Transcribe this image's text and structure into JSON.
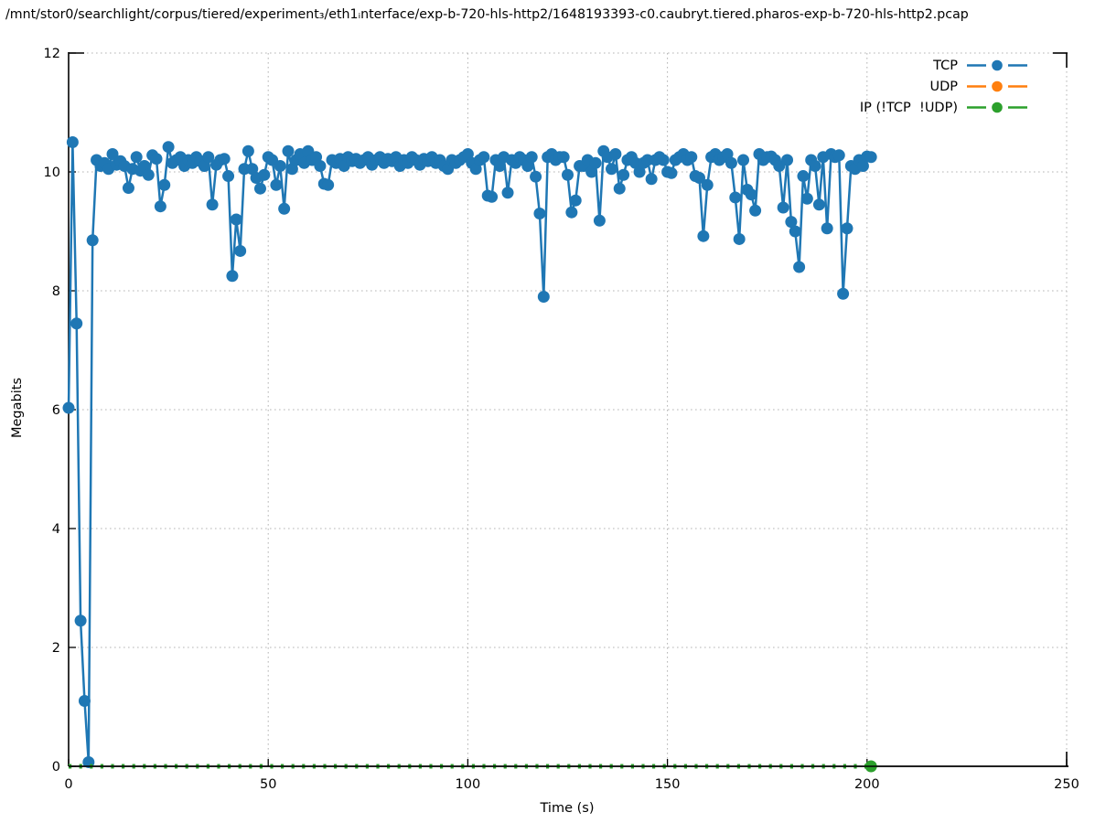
{
  "chart_data": {
    "type": "line",
    "title": "/mnt/stor0/searchlight/corpus/tiered/experiment₃/eth1ᵢnterface/exp-b-720-hls-http2/1648193393-c0.caubryt.tiered.pharos-exp-b-720-hls-http2.pcap",
    "xlabel": "Time (s)",
    "ylabel": "Megabits",
    "xlim": [
      0,
      250
    ],
    "ylim": [
      0,
      12
    ],
    "xticks": [
      0,
      50,
      100,
      150,
      200,
      250
    ],
    "yticks": [
      0,
      2,
      4,
      6,
      8,
      10,
      12
    ],
    "grid": "dotted",
    "legend_position": "top-right",
    "series": [
      {
        "name": "TCP",
        "color": "#1f77b4",
        "style": "linespoints",
        "line": "solid",
        "points": "all",
        "x": [
          0,
          1,
          2,
          3,
          4,
          5,
          6,
          7,
          8,
          9,
          10,
          11,
          12,
          13,
          14,
          15,
          16,
          17,
          18,
          19,
          20,
          21,
          22,
          23,
          24,
          25,
          26,
          27,
          28,
          29,
          30,
          31,
          32,
          33,
          34,
          35,
          36,
          37,
          38,
          39,
          40,
          41,
          42,
          43,
          44,
          45,
          46,
          47,
          48,
          49,
          50,
          51,
          52,
          53,
          54,
          55,
          56,
          57,
          58,
          59,
          60,
          61,
          62,
          63,
          64,
          65,
          66,
          67,
          68,
          69,
          70,
          71,
          72,
          73,
          74,
          75,
          76,
          77,
          78,
          79,
          80,
          81,
          82,
          83,
          84,
          85,
          86,
          87,
          88,
          89,
          90,
          91,
          92,
          93,
          94,
          95,
          96,
          97,
          98,
          99,
          100,
          101,
          102,
          103,
          104,
          105,
          106,
          107,
          108,
          109,
          110,
          111,
          112,
          113,
          114,
          115,
          116,
          117,
          118,
          119,
          120,
          121,
          122,
          123,
          124,
          125,
          126,
          127,
          128,
          129,
          130,
          131,
          132,
          133,
          134,
          135,
          136,
          137,
          138,
          139,
          140,
          141,
          142,
          143,
          144,
          145,
          146,
          147,
          148,
          149,
          150,
          151,
          152,
          153,
          154,
          155,
          156,
          157,
          158,
          159,
          160,
          161,
          162,
          163,
          164,
          165,
          166,
          167,
          168,
          169,
          170,
          171,
          172,
          173,
          174,
          175,
          176,
          177,
          178,
          179,
          180,
          181,
          182,
          183,
          184,
          185,
          186,
          187,
          188,
          189,
          190,
          191,
          192,
          193,
          194,
          195,
          196,
          197,
          198,
          199,
          200,
          201
        ],
        "y": [
          6.03,
          10.5,
          7.45,
          2.45,
          1.1,
          0.07,
          8.85,
          10.2,
          10.1,
          10.15,
          10.05,
          10.3,
          10.12,
          10.18,
          10.1,
          9.73,
          10.05,
          10.25,
          10.02,
          10.1,
          9.95,
          10.28,
          10.22,
          9.42,
          9.78,
          10.42,
          10.15,
          10.2,
          10.25,
          10.1,
          10.2,
          10.15,
          10.25,
          10.18,
          10.1,
          10.25,
          9.45,
          10.12,
          10.2,
          10.22,
          9.93,
          8.25,
          9.2,
          8.67,
          10.05,
          10.35,
          10.05,
          9.9,
          9.72,
          9.95,
          10.25,
          10.2,
          9.78,
          10.1,
          9.38,
          10.35,
          10.05,
          10.2,
          10.3,
          10.15,
          10.35,
          10.2,
          10.25,
          10.1,
          9.8,
          9.78,
          10.2,
          10.15,
          10.22,
          10.1,
          10.25,
          10.18,
          10.22,
          10.15,
          10.2,
          10.25,
          10.12,
          10.2,
          10.25,
          10.15,
          10.22,
          10.18,
          10.25,
          10.1,
          10.2,
          10.15,
          10.25,
          10.2,
          10.12,
          10.22,
          10.18,
          10.25,
          10.15,
          10.2,
          10.1,
          10.05,
          10.2,
          10.15,
          10.2,
          10.25,
          10.3,
          10.15,
          10.05,
          10.2,
          10.25,
          9.6,
          9.58,
          10.2,
          10.1,
          10.25,
          9.65,
          10.2,
          10.15,
          10.25,
          10.2,
          10.1,
          10.25,
          9.92,
          9.3,
          7.9,
          10.25,
          10.3,
          10.2,
          10.25,
          10.25,
          9.95,
          9.32,
          9.52,
          10.1,
          10.1,
          10.2,
          10.0,
          10.15,
          9.18,
          10.35,
          10.25,
          10.05,
          10.3,
          9.72,
          9.95,
          10.2,
          10.25,
          10.15,
          10.0,
          10.15,
          10.2,
          9.88,
          10.2,
          10.25,
          10.2,
          10.0,
          9.98,
          10.2,
          10.25,
          10.3,
          10.2,
          10.25,
          9.93,
          9.9,
          8.92,
          9.78,
          10.25,
          10.3,
          10.2,
          10.25,
          10.3,
          10.15,
          9.57,
          8.87,
          10.2,
          9.7,
          9.62,
          9.35,
          10.3,
          10.2,
          10.25,
          10.26,
          10.2,
          10.1,
          9.4,
          10.2,
          9.16,
          9.0,
          8.4,
          9.93,
          9.55,
          10.2,
          10.1,
          9.45,
          10.25,
          9.05,
          10.3,
          10.25,
          10.28,
          7.95,
          9.05,
          10.1,
          10.05,
          10.2,
          10.1,
          10.26,
          10.25
        ]
      },
      {
        "name": "UDP",
        "color": "#ff7f0e",
        "style": "linespoints",
        "line": "solid",
        "points": "all",
        "x": [],
        "y": []
      },
      {
        "name": "IP (!TCP  !UDP)",
        "color": "#2ca02c",
        "style": "linespoints",
        "line": "dashed",
        "points": "last",
        "x": [
          0,
          201
        ],
        "y": [
          0,
          0
        ]
      }
    ]
  }
}
